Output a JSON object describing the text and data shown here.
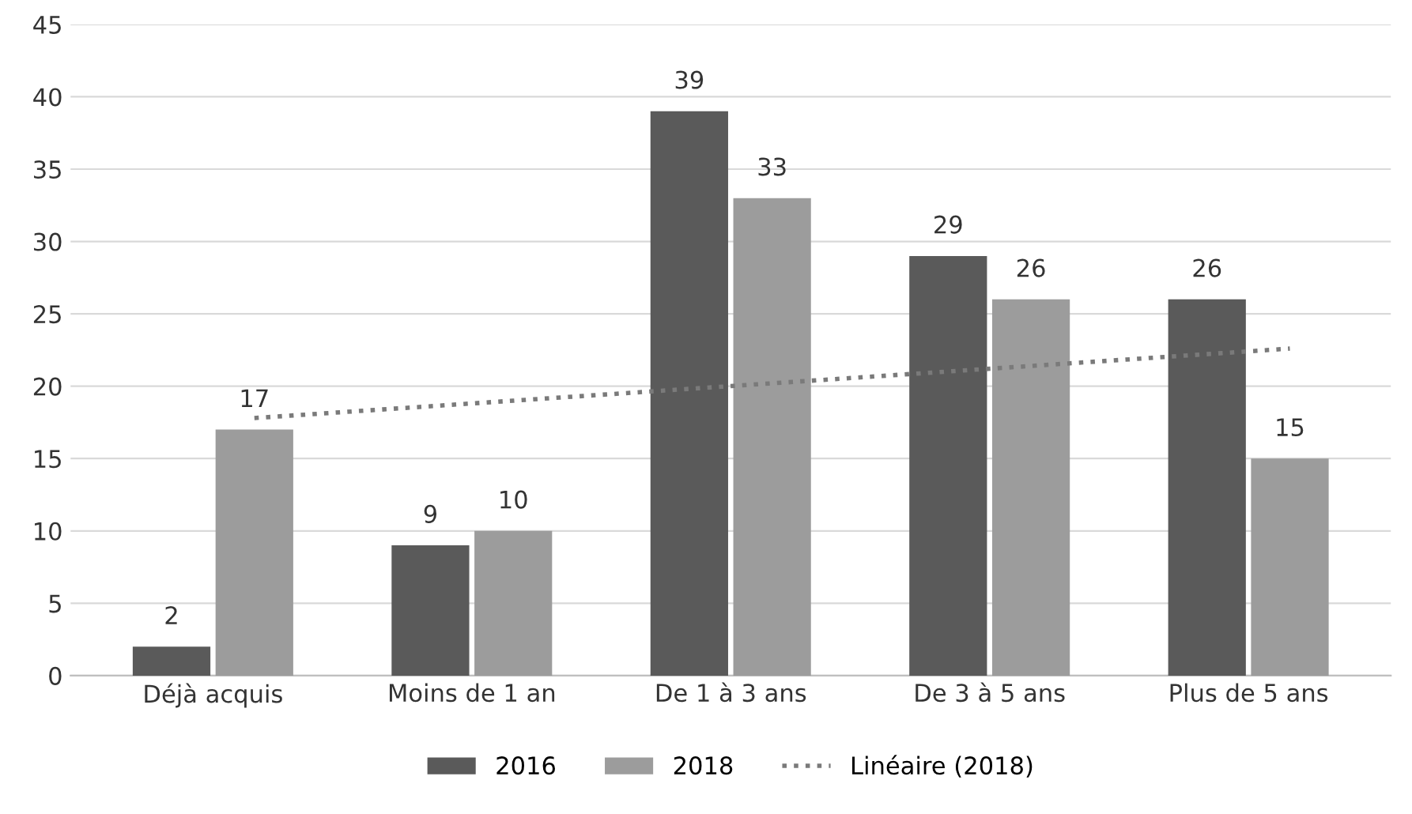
{
  "chart_data": {
    "type": "bar",
    "categories": [
      "Déjà acquis",
      "Moins de 1 an",
      "De 1 à 3 ans",
      "De 3 à 5 ans",
      "Plus de 5 ans"
    ],
    "series": [
      {
        "name": "2016",
        "color": "#5a5a5a",
        "values": [
          2,
          9,
          39,
          29,
          26
        ],
        "value_labels": [
          "2",
          "9",
          "39",
          "29",
          "26"
        ]
      },
      {
        "name": "2018",
        "color": "#9c9c9c",
        "values": [
          17,
          10,
          33,
          26,
          15
        ],
        "value_labels": [
          "17",
          "10",
          "33",
          "26",
          "15"
        ]
      },
      {
        "name": "Linéaire (2018)",
        "type": "line",
        "color": "#7a7a7a",
        "line_style": "dotted",
        "values": [
          17.8,
          19.0,
          20.2,
          21.4,
          22.6
        ]
      }
    ],
    "ylim": [
      0,
      45
    ],
    "yticks": [
      0,
      5,
      10,
      15,
      20,
      25,
      30,
      35,
      40,
      45
    ],
    "grid": "y",
    "legend": "bottom"
  }
}
